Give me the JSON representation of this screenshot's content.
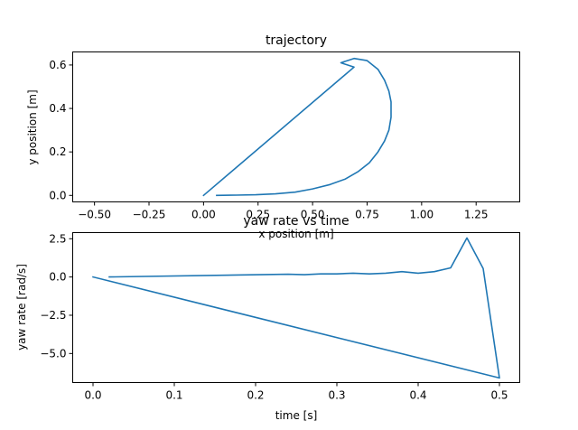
{
  "chart_data": [
    {
      "type": "line",
      "title": "trajectory",
      "xlabel": "x position [m]",
      "ylabel": "y position [m]",
      "xlim": [
        -0.6,
        1.45
      ],
      "ylim": [
        -0.03,
        0.66
      ],
      "xticks": [
        -0.5,
        -0.25,
        0.0,
        0.25,
        0.5,
        0.75,
        1.0,
        1.25
      ],
      "xtick_labels": [
        "−0.50",
        "−0.25",
        "0.00",
        "0.25",
        "0.50",
        "0.75",
        "1.00",
        "1.25"
      ],
      "yticks": [
        0.0,
        0.2,
        0.4,
        0.6
      ],
      "ytick_labels": [
        "0.0",
        "0.2",
        "0.4",
        "0.6"
      ],
      "grid": false,
      "series": [
        {
          "color": "#1f77b4",
          "x": [
            0.0,
            0.69,
            0.63,
            0.69,
            0.75,
            0.8,
            0.83,
            0.85,
            0.86,
            0.86,
            0.85,
            0.83,
            0.8,
            0.76,
            0.71,
            0.65,
            0.58,
            0.5,
            0.42,
            0.33,
            0.24,
            0.15,
            0.06
          ],
          "y": [
            0.0,
            0.59,
            0.61,
            0.63,
            0.62,
            0.58,
            0.53,
            0.48,
            0.43,
            0.36,
            0.3,
            0.25,
            0.2,
            0.15,
            0.11,
            0.075,
            0.05,
            0.03,
            0.015,
            0.007,
            0.003,
            0.001,
            0.0
          ]
        }
      ]
    },
    {
      "type": "line",
      "title": "yaw rate vs time",
      "xlabel": "time [s]",
      "ylabel": "yaw rate [rad/s]",
      "xlim": [
        -0.025,
        0.525
      ],
      "ylim": [
        -6.9,
        2.9
      ],
      "xticks": [
        0.0,
        0.1,
        0.2,
        0.3,
        0.4,
        0.5
      ],
      "xtick_labels": [
        "0.0",
        "0.1",
        "0.2",
        "0.3",
        "0.4",
        "0.5"
      ],
      "yticks": [
        2.5,
        0.0,
        -2.5,
        -5.0
      ],
      "ytick_labels": [
        "2.5",
        "0.0",
        "−2.5",
        "−5.0"
      ],
      "grid": false,
      "series": [
        {
          "color": "#1f77b4",
          "x": [
            0.0,
            0.5,
            0.48,
            0.46,
            0.44,
            0.42,
            0.4,
            0.38,
            0.36,
            0.34,
            0.32,
            0.3,
            0.28,
            0.26,
            0.24,
            0.02
          ],
          "y": [
            0.0,
            -6.6,
            0.55,
            2.55,
            0.6,
            0.35,
            0.25,
            0.35,
            0.25,
            0.2,
            0.25,
            0.2,
            0.2,
            0.15,
            0.18,
            0.0
          ]
        }
      ]
    }
  ]
}
